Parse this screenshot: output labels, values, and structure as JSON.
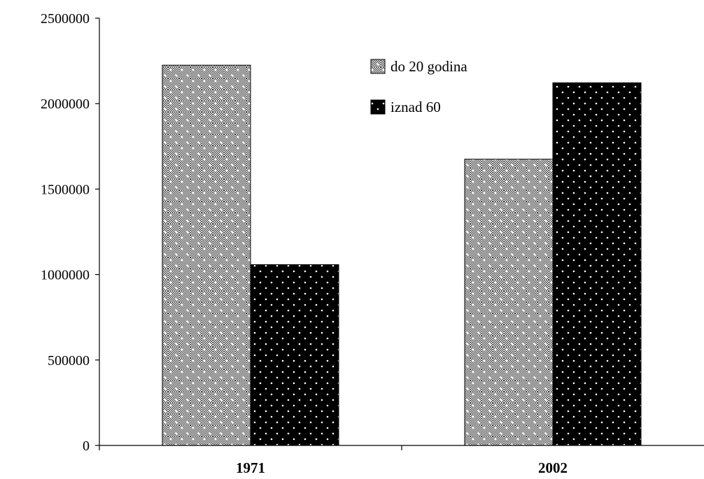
{
  "chart_data": {
    "type": "bar",
    "categories": [
      "1971",
      "2002"
    ],
    "series": [
      {
        "name": "do 20 godina",
        "values": [
          2225000,
          1675000
        ]
      },
      {
        "name": "iznad 60",
        "values": [
          1058000,
          2122000
        ]
      }
    ],
    "ylim": [
      0,
      2500000
    ],
    "yticks": [
      "0",
      "500000",
      "1000000",
      "1500000",
      "2000000",
      "2500000"
    ],
    "title": "",
    "xlabel": "",
    "ylabel": "",
    "grid": false,
    "legend_position": "top-right",
    "colors": {
      "series_0": "#8c8c8c",
      "series_1": "#000000"
    }
  }
}
